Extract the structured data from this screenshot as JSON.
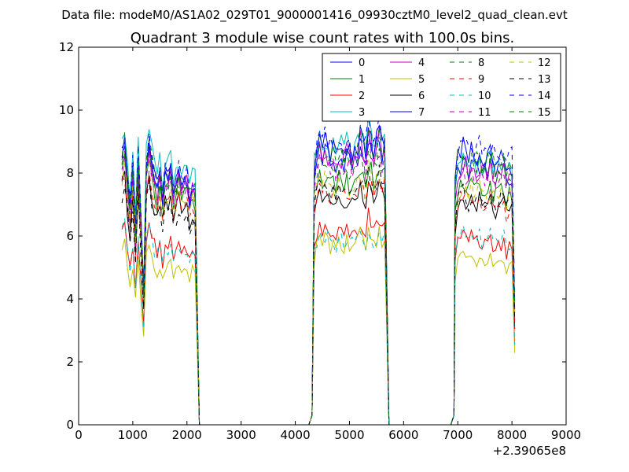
{
  "chart_data": {
    "type": "line",
    "suptitle": "Data file: modeM0/AS1A02_029T01_9000001416_09930cztM0_level2_quad_clean.evt",
    "title": "Quadrant 3 module wise count rates with 100.0s bins.",
    "xlabel": "",
    "ylabel": "",
    "x_offset_label": "+2.39065e8",
    "xlim": [
      0,
      9000
    ],
    "ylim": [
      0,
      12
    ],
    "xticks": [
      0,
      1000,
      2000,
      3000,
      4000,
      5000,
      6000,
      7000,
      8000,
      9000
    ],
    "yticks": [
      0,
      2,
      4,
      6,
      8,
      10,
      12
    ],
    "grid": false,
    "legend_position": "top-right",
    "legend_columns": 4,
    "segments": [
      {
        "name": "segment-1",
        "x_start": 800,
        "x_end": 2150,
        "step": 50,
        "drop_to": 2230
      },
      {
        "name": "segment-2",
        "x_start": 4350,
        "x_end": 5650,
        "step": 50,
        "rise_from": 4250,
        "drop_to": 5730
      },
      {
        "name": "segment-3",
        "x_start": 6950,
        "x_end": 8050,
        "step": 50,
        "rise_from": 6870
      }
    ],
    "series": [
      {
        "name": "0",
        "color": "#0000ff",
        "dash": false,
        "level": [
          8.4,
          8.6,
          8.3
        ]
      },
      {
        "name": "1",
        "color": "#008000",
        "dash": false,
        "level": [
          8.0,
          7.8,
          7.6
        ]
      },
      {
        "name": "2",
        "color": "#ff0000",
        "dash": false,
        "level": [
          6.1,
          6.2,
          5.9
        ]
      },
      {
        "name": "3",
        "color": "#00bfbf",
        "dash": false,
        "level": [
          8.9,
          9.0,
          8.5
        ]
      },
      {
        "name": "4",
        "color": "#bf00bf",
        "dash": false,
        "level": [
          8.3,
          8.6,
          8.2
        ]
      },
      {
        "name": "5",
        "color": "#bfbf00",
        "dash": false,
        "level": [
          5.4,
          5.8,
          5.3
        ]
      },
      {
        "name": "6",
        "color": "#000000",
        "dash": false,
        "level": [
          7.5,
          7.2,
          7.1
        ]
      },
      {
        "name": "7",
        "color": "#0000ff",
        "dash": false,
        "level": [
          8.5,
          8.9,
          8.6
        ]
      },
      {
        "name": "8",
        "color": "#008000",
        "dash": true,
        "level": [
          8.2,
          8.3,
          8.3
        ]
      },
      {
        "name": "9",
        "color": "#ff0000",
        "dash": true,
        "level": [
          7.6,
          7.4,
          7.2
        ]
      },
      {
        "name": "10",
        "color": "#00bfbf",
        "dash": true,
        "level": [
          6.0,
          5.9,
          6.0
        ]
      },
      {
        "name": "11",
        "color": "#bf00bf",
        "dash": true,
        "level": [
          8.1,
          8.3,
          8.0
        ]
      },
      {
        "name": "12",
        "color": "#bfbf00",
        "dash": true,
        "level": [
          7.9,
          7.6,
          7.5
        ]
      },
      {
        "name": "13",
        "color": "#000000",
        "dash": true,
        "level": [
          7.3,
          7.5,
          7.3
        ]
      },
      {
        "name": "14",
        "color": "#0000ff",
        "dash": true,
        "level": [
          8.7,
          9.0,
          8.9
        ]
      },
      {
        "name": "15",
        "color": "#008000",
        "dash": true,
        "level": [
          8.5,
          8.7,
          8.6
        ]
      }
    ],
    "shape_note": "Each series follows a shared fluctuation pattern per segment scaled by its level; first segment shows large dips near 1200-1600."
  }
}
